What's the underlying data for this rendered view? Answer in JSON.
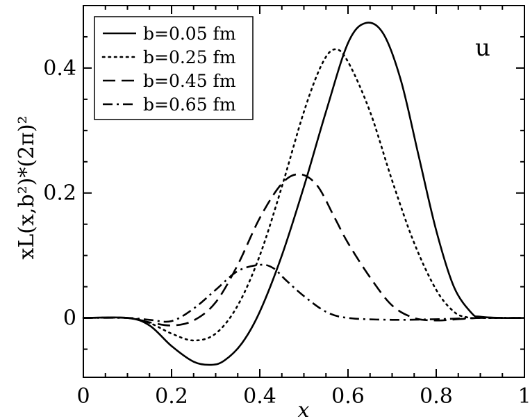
{
  "chart_data": {
    "type": "line",
    "xlabel": "x",
    "ylabel": "xL(x,b²)*(2π)²",
    "xlim": [
      0,
      1
    ],
    "ylim": [
      -0.095,
      0.5
    ],
    "x_ticks": [
      0,
      0.2,
      0.4,
      0.6,
      0.8,
      1
    ],
    "x_tick_labels": [
      "0",
      "0.2",
      "0.4",
      "0.6",
      "0.8",
      "1"
    ],
    "y_ticks": [
      0,
      0.2,
      0.4
    ],
    "y_tick_labels": [
      "0",
      "0.2",
      "0.4"
    ],
    "panel_label": "u",
    "legend_position": "top-left",
    "grid": false,
    "series": [
      {
        "name": "b=0.05 fm",
        "style": "solid",
        "x": [
          0,
          0.1,
          0.15,
          0.2,
          0.25,
          0.29,
          0.32,
          0.36,
          0.4,
          0.45,
          0.5,
          0.55,
          0.6,
          0.64,
          0.68,
          0.72,
          0.76,
          0.8,
          0.84,
          0.88,
          0.9,
          0.95,
          1
        ],
        "y": [
          0,
          0,
          -0.012,
          -0.045,
          -0.07,
          -0.075,
          -0.068,
          -0.04,
          0.01,
          0.1,
          0.21,
          0.33,
          0.44,
          0.472,
          0.455,
          0.38,
          0.26,
          0.14,
          0.05,
          0.008,
          0.002,
          0,
          0
        ]
      },
      {
        "name": "b=0.25 fm",
        "style": "dotted",
        "x": [
          0,
          0.1,
          0.15,
          0.2,
          0.25,
          0.3,
          0.35,
          0.4,
          0.45,
          0.5,
          0.54,
          0.57,
          0.6,
          0.65,
          0.7,
          0.75,
          0.8,
          0.84,
          0.87,
          0.9,
          1
        ],
        "y": [
          0,
          0,
          -0.008,
          -0.025,
          -0.036,
          -0.025,
          0.02,
          0.1,
          0.21,
          0.33,
          0.405,
          0.43,
          0.41,
          0.33,
          0.22,
          0.12,
          0.045,
          0.01,
          0.001,
          0,
          0
        ]
      },
      {
        "name": "b=0.45 fm",
        "style": "dashed",
        "x": [
          0,
          0.1,
          0.15,
          0.2,
          0.25,
          0.3,
          0.35,
          0.4,
          0.45,
          0.49,
          0.53,
          0.57,
          0.6,
          0.65,
          0.7,
          0.75,
          0.8,
          0.85,
          0.9,
          1
        ],
        "y": [
          0,
          0,
          -0.007,
          -0.012,
          -0.004,
          0.025,
          0.085,
          0.16,
          0.215,
          0.23,
          0.212,
          0.16,
          0.12,
          0.065,
          0.02,
          0,
          -0.004,
          -0.002,
          0,
          0
        ]
      },
      {
        "name": "b=0.65 fm",
        "style": "dash-dot",
        "x": [
          0,
          0.1,
          0.15,
          0.2,
          0.25,
          0.3,
          0.35,
          0.4,
          0.43,
          0.46,
          0.5,
          0.55,
          0.6,
          0.7,
          0.8,
          0.9,
          1
        ],
        "y": [
          0,
          0,
          -0.003,
          -0.005,
          0.015,
          0.045,
          0.075,
          0.085,
          0.08,
          0.06,
          0.035,
          0.01,
          0,
          -0.003,
          -0.002,
          0,
          0
        ]
      }
    ]
  }
}
